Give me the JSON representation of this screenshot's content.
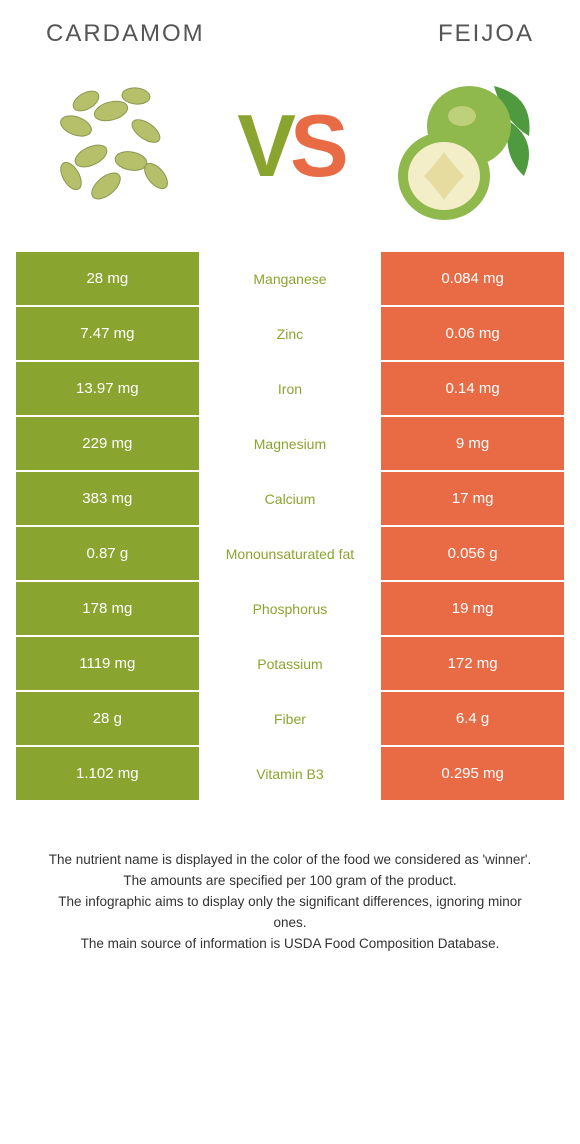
{
  "left": {
    "title": "CARDAMOM"
  },
  "right": {
    "title": "FEIJOA"
  },
  "colors": {
    "left": "#8aa52f",
    "right": "#e86b46",
    "text": "#555"
  },
  "rows": [
    {
      "left": "28 mg",
      "label": "Manganese",
      "right": "0.084 mg",
      "winner": "left"
    },
    {
      "left": "7.47 mg",
      "label": "Zinc",
      "right": "0.06 mg",
      "winner": "left"
    },
    {
      "left": "13.97 mg",
      "label": "Iron",
      "right": "0.14 mg",
      "winner": "left"
    },
    {
      "left": "229 mg",
      "label": "Magnesium",
      "right": "9 mg",
      "winner": "left"
    },
    {
      "left": "383 mg",
      "label": "Calcium",
      "right": "17 mg",
      "winner": "left"
    },
    {
      "left": "0.87 g",
      "label": "Monounsaturated fat",
      "right": "0.056 g",
      "winner": "left"
    },
    {
      "left": "178 mg",
      "label": "Phosphorus",
      "right": "19 mg",
      "winner": "left"
    },
    {
      "left": "1119 mg",
      "label": "Potassium",
      "right": "172 mg",
      "winner": "left"
    },
    {
      "left": "28 g",
      "label": "Fiber",
      "right": "6.4 g",
      "winner": "left"
    },
    {
      "left": "1.102 mg",
      "label": "Vitamin B3",
      "right": "0.295 mg",
      "winner": "left"
    }
  ],
  "footer": [
    "The nutrient name is displayed in the color of the food we considered as 'winner'.",
    "The amounts are specified per 100 gram of the product.",
    "The infographic aims to display only the significant differences, ignoring minor ones.",
    "The main source of information is USDA Food Composition Database."
  ]
}
